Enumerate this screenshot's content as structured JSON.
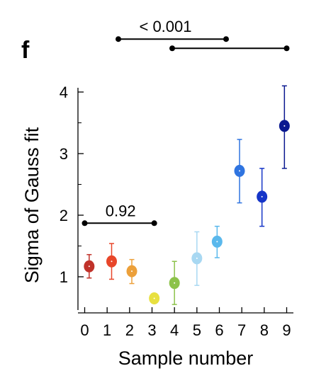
{
  "panel_label": "f",
  "chart_data": {
    "type": "scatter",
    "xlabel": "Sample number",
    "ylabel": "Sigma of Gauss fit",
    "x_ticks": [
      "0",
      "1",
      "2",
      "3",
      "4",
      "5",
      "6",
      "7",
      "8",
      "9"
    ],
    "y_ticks": [
      "1",
      "2",
      "3",
      "4"
    ],
    "xlim": [
      -0.3,
      9.3
    ],
    "ylim": [
      0.45,
      4.1
    ],
    "points": [
      {
        "x": 0.2,
        "y": 1.17,
        "err_low": 0.98,
        "err_high": 1.36,
        "color": "#c0322a"
      },
      {
        "x": 1.2,
        "y": 1.25,
        "err_low": 0.96,
        "err_high": 1.54,
        "color": "#e8462a"
      },
      {
        "x": 2.1,
        "y": 1.09,
        "err_low": 0.89,
        "err_high": 1.28,
        "color": "#eca03a"
      },
      {
        "x": 3.1,
        "y": 0.65,
        "err_low": 0.6,
        "err_high": 0.7,
        "color": "#e8e040"
      },
      {
        "x": 4.0,
        "y": 0.9,
        "err_low": 0.55,
        "err_high": 1.25,
        "color": "#8cc24a"
      },
      {
        "x": 5.0,
        "y": 1.3,
        "err_low": 0.86,
        "err_high": 1.73,
        "color": "#a8d8f2"
      },
      {
        "x": 5.9,
        "y": 1.57,
        "err_low": 1.31,
        "err_high": 1.82,
        "color": "#5ab8ec"
      },
      {
        "x": 6.9,
        "y": 2.72,
        "err_low": 2.2,
        "err_high": 3.23,
        "color": "#2f74e0"
      },
      {
        "x": 7.9,
        "y": 2.3,
        "err_low": 1.82,
        "err_high": 2.76,
        "color": "#1535c8"
      },
      {
        "x": 8.9,
        "y": 3.45,
        "err_low": 2.76,
        "err_high": 4.1,
        "color": "#0a1890"
      }
    ],
    "annotations": [
      {
        "label": "< 0.001",
        "x_start": 1.5,
        "x_end": 6.3,
        "y": 4.4,
        "label_x": 3.6
      },
      {
        "label": "",
        "x_start": 3.9,
        "x_end": 9.0,
        "y": 4.25
      },
      {
        "label": "0.92",
        "x_start": 0.0,
        "x_end": 3.1,
        "y": 1.87,
        "label_x": 1.6
      }
    ]
  }
}
